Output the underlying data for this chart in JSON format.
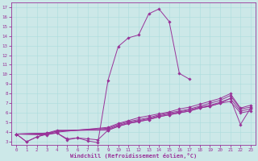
{
  "xlabel": "Windchill (Refroidissement éolien,°C)",
  "bg_color": "#cce8e8",
  "line_color": "#993399",
  "xlim": [
    -0.5,
    23.5
  ],
  "ylim": [
    2.7,
    17.5
  ],
  "yticks": [
    3,
    4,
    5,
    6,
    7,
    8,
    9,
    10,
    11,
    12,
    13,
    14,
    15,
    16,
    17
  ],
  "xticks": [
    0,
    1,
    2,
    3,
    4,
    5,
    6,
    7,
    8,
    9,
    10,
    11,
    12,
    13,
    14,
    15,
    16,
    17,
    18,
    19,
    20,
    21,
    22,
    23
  ],
  "lines": [
    {
      "x": [
        0,
        1,
        2,
        3,
        4,
        5,
        6,
        7,
        8,
        9,
        10,
        11,
        12,
        13,
        14,
        15,
        16,
        17
      ],
      "y": [
        3.8,
        3.0,
        3.5,
        3.8,
        3.9,
        3.2,
        3.4,
        3.1,
        2.9,
        9.4,
        12.9,
        13.8,
        14.1,
        16.3,
        16.8,
        15.5,
        10.1,
        9.5
      ]
    },
    {
      "x": [
        0,
        3,
        4,
        9,
        10,
        11,
        12,
        13,
        14,
        15,
        16,
        17,
        18,
        19,
        20,
        21,
        22,
        23
      ],
      "y": [
        3.8,
        3.7,
        4.0,
        4.5,
        4.9,
        5.2,
        5.5,
        5.7,
        5.9,
        6.1,
        6.4,
        6.6,
        6.9,
        7.2,
        7.5,
        8.0,
        6.5,
        6.8
      ]
    },
    {
      "x": [
        0,
        3,
        4,
        9,
        10,
        11,
        12,
        13,
        14,
        15,
        16,
        17,
        18,
        19,
        20,
        21,
        22,
        23
      ],
      "y": [
        3.8,
        3.8,
        4.1,
        4.4,
        4.8,
        5.1,
        5.3,
        5.5,
        5.8,
        6.0,
        6.2,
        6.4,
        6.7,
        7.0,
        7.3,
        7.8,
        6.4,
        6.6
      ]
    },
    {
      "x": [
        0,
        3,
        4,
        9,
        10,
        11,
        12,
        13,
        14,
        15,
        16,
        17,
        18,
        19,
        20,
        21,
        22,
        23
      ],
      "y": [
        3.8,
        3.9,
        4.1,
        4.3,
        4.7,
        5.0,
        5.2,
        5.4,
        5.7,
        5.9,
        6.1,
        6.3,
        6.6,
        6.8,
        7.1,
        7.5,
        6.2,
        6.4
      ]
    },
    {
      "x": [
        0,
        3,
        4,
        9,
        10,
        11,
        12,
        13,
        14,
        15,
        16,
        17,
        18,
        19,
        20,
        21,
        22,
        23
      ],
      "y": [
        3.8,
        3.9,
        4.2,
        4.2,
        4.6,
        4.9,
        5.1,
        5.3,
        5.6,
        5.8,
        6.0,
        6.2,
        6.5,
        6.7,
        7.0,
        7.2,
        6.0,
        6.2
      ]
    },
    {
      "x": [
        0,
        1,
        2,
        3,
        4,
        5,
        6,
        7,
        8,
        9,
        10,
        11,
        12,
        13,
        14,
        15,
        16,
        17,
        18,
        19,
        20,
        21,
        22,
        23
      ],
      "y": [
        3.8,
        3.0,
        3.5,
        3.8,
        3.9,
        3.3,
        3.4,
        3.3,
        3.2,
        4.2,
        4.6,
        4.9,
        5.1,
        5.3,
        5.6,
        5.8,
        6.0,
        6.2,
        6.5,
        6.7,
        7.0,
        7.5,
        4.8,
        6.5
      ]
    }
  ]
}
